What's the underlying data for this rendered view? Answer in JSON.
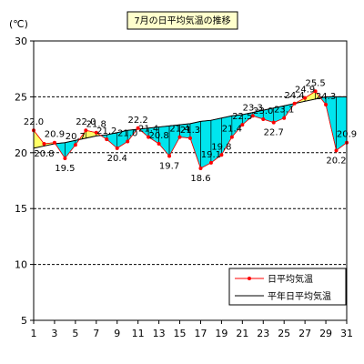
{
  "chart_data": {
    "type": "line",
    "title": "7月の日平均気温の推移",
    "ylabel": "(℃)",
    "xlabel": "",
    "ylim": [
      5,
      30
    ],
    "yticks": [
      5,
      10,
      15,
      20,
      25,
      30
    ],
    "xticks": [
      1,
      3,
      5,
      7,
      9,
      11,
      13,
      15,
      17,
      19,
      21,
      23,
      25,
      27,
      29,
      31
    ],
    "x": [
      1,
      2,
      3,
      4,
      5,
      6,
      7,
      8,
      9,
      10,
      11,
      12,
      13,
      14,
      15,
      16,
      17,
      18,
      19,
      20,
      21,
      22,
      23,
      24,
      25,
      26,
      27,
      28,
      29,
      30,
      31
    ],
    "gridlines": "dashed, horizontal",
    "legend_position": "bottom-right",
    "series": [
      {
        "name": "日平均気温",
        "color": "#ff0000",
        "values": [
          22.0,
          20.8,
          20.9,
          19.5,
          20.7,
          22.0,
          21.8,
          21.2,
          20.4,
          21.0,
          22.2,
          21.4,
          20.8,
          19.7,
          21.4,
          21.3,
          18.6,
          19.1,
          19.8,
          21.4,
          22.5,
          23.3,
          23.0,
          22.7,
          23.1,
          24.4,
          24.9,
          25.5,
          24.3,
          20.2,
          20.9
        ]
      },
      {
        "name": "平年日平均気温",
        "color": "#000000",
        "values": [
          20.4,
          20.6,
          20.8,
          20.9,
          21.1,
          21.3,
          21.5,
          21.6,
          21.8,
          22.0,
          22.1,
          22.2,
          22.3,
          22.4,
          22.5,
          22.6,
          22.8,
          22.9,
          23.1,
          23.3,
          23.4,
          23.6,
          23.8,
          24.0,
          24.2,
          24.4,
          24.6,
          24.8,
          25.0,
          25.0,
          25.0
        ]
      }
    ],
    "fill_below_normal_color": "#00e5ee",
    "fill_above_normal_color": "#ffff66",
    "data_labels": [
      "22.0",
      "20.8",
      "20.9",
      "19.5",
      "20.7",
      "22.0",
      "21.8",
      "21.2",
      "20.4",
      "21.0",
      "22.2",
      "21.4",
      "20.8",
      "19.7",
      "21.4",
      "21.3",
      "18.6",
      "19.1",
      "19.8",
      "21.4",
      "22.5",
      "23.3",
      "23.0",
      "22.7",
      "23.1",
      "24.4",
      "24.9",
      "25.5",
      "24.3",
      "20.2",
      "20.9"
    ]
  }
}
